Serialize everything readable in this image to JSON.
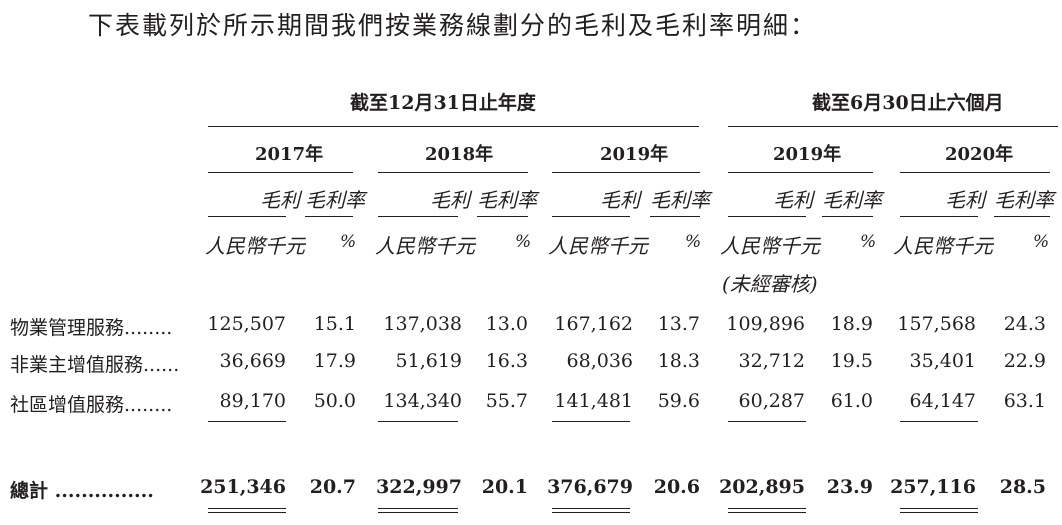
{
  "intro": "下表載列於所示期間我們按業務線劃分的毛利及毛利率明細：",
  "periods": {
    "year_end": "截至12月31日止年度",
    "six_months": "截至6月30日止六個月"
  },
  "years": [
    "2017年",
    "2018年",
    "2019年",
    "2019年",
    "2020年"
  ],
  "col_headers": {
    "profit": "毛利",
    "margin": "毛利率",
    "unit": "人民幣千元",
    "pct": "%",
    "unaudited": "(未經審核)"
  },
  "rows": [
    {
      "label": "物業管理服務........",
      "values": [
        "125,507",
        "15.1",
        "137,038",
        "13.0",
        "167,162",
        "13.7",
        "109,896",
        "18.9",
        "157,568",
        "24.3"
      ]
    },
    {
      "label": "非業主增值服務......",
      "values": [
        "36,669",
        "17.9",
        "51,619",
        "16.3",
        "68,036",
        "18.3",
        "32,712",
        "19.5",
        "35,401",
        "22.9"
      ]
    },
    {
      "label": "社區增值服務........",
      "values": [
        "89,170",
        "50.0",
        "134,340",
        "55.7",
        "141,481",
        "59.6",
        "60,287",
        "61.0",
        "64,147",
        "63.1"
      ]
    }
  ],
  "total": {
    "label": "總計 ...............",
    "values": [
      "251,346",
      "20.7",
      "322,997",
      "20.1",
      "376,679",
      "20.6",
      "202,895",
      "23.9",
      "257,116",
      "28.5"
    ]
  }
}
